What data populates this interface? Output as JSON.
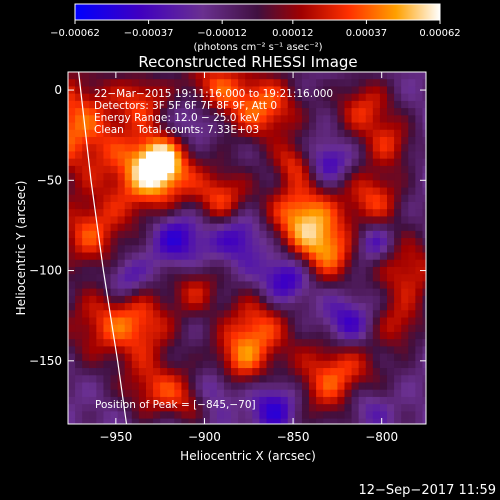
{
  "chart_data": {
    "type": "heatmap",
    "title": "Reconstructed RHESSI Image",
    "xlabel": "Heliocentric X (arcsec)",
    "ylabel": "Heliocentric Y (arcsec)",
    "xlim": [
      -977,
      -775
    ],
    "ylim": [
      -185,
      10
    ],
    "x_ticks": [
      -950,
      -900,
      -850,
      -800
    ],
    "x_tick_labels": [
      "−950",
      "−900",
      "−850",
      "−800"
    ],
    "y_ticks": [
      0,
      -50,
      -100,
      -150
    ],
    "y_tick_labels": [
      "0",
      "−50",
      "−100",
      "−150"
    ],
    "colorbar": {
      "min": -0.00062,
      "max": 0.00062,
      "ticks": [
        -0.00062,
        -0.00037,
        -0.00012,
        0.00012,
        0.00037,
        0.00062
      ],
      "tick_labels": [
        "−0.00062",
        "−0.00037",
        "−0.00012",
        "0.00012",
        "0.00037",
        "0.00062"
      ],
      "unit_label": "(photons cm⁻² s⁻¹ asec⁻²)"
    },
    "annotations": [
      "22−Mar−2015 19:11:16.000 to 19:21:16.000",
      "Detectors: 3F 5F 6F 7F 8F 9F, Att 0",
      "Energy Range: 12.0 − 25.0 keV",
      "Clean    Total counts: 7.33E+03"
    ],
    "peak_label": "Position of Peak = [−845,−70]",
    "peak": [
      -845,
      -70
    ],
    "limb": [
      [
        -971,
        10
      ],
      [
        -964,
        -50
      ],
      [
        -957,
        -100
      ],
      [
        -949,
        -150
      ],
      [
        -944,
        -185
      ]
    ],
    "hotspots": [
      [
        -975,
        -20,
        22,
        0.85
      ],
      [
        -965,
        -80,
        14,
        0.7
      ],
      [
        -960,
        -130,
        16,
        0.55
      ],
      [
        -930,
        -50,
        18,
        0.85
      ],
      [
        -925,
        -40,
        10,
        0.8
      ],
      [
        -935,
        -130,
        14,
        0.65
      ],
      [
        -930,
        -165,
        12,
        0.6
      ],
      [
        -895,
        0,
        14,
        0.75
      ],
      [
        -890,
        -60,
        12,
        0.7
      ],
      [
        -905,
        -110,
        10,
        0.55
      ],
      [
        -870,
        -130,
        14,
        0.7
      ],
      [
        -880,
        -150,
        12,
        0.65
      ],
      [
        -865,
        -10,
        14,
        0.8
      ],
      [
        -845,
        -70,
        14,
        1.0
      ],
      [
        -830,
        -90,
        12,
        0.8
      ],
      [
        -825,
        -160,
        18,
        0.85
      ],
      [
        -810,
        -10,
        12,
        0.65
      ],
      [
        -805,
        -60,
        12,
        0.7
      ],
      [
        -795,
        -30,
        10,
        0.55
      ],
      [
        -785,
        -100,
        14,
        0.65
      ],
      [
        -790,
        -130,
        10,
        0.5
      ],
      [
        -935,
        -5,
        10,
        0.55
      ],
      [
        -850,
        -40,
        8,
        0.55
      ],
      [
        -910,
        -170,
        10,
        0.5
      ]
    ],
    "coldspots": [
      [
        -915,
        -80,
        12,
        -0.6
      ],
      [
        -905,
        -15,
        10,
        -0.5
      ],
      [
        -855,
        -105,
        10,
        -0.6
      ],
      [
        -860,
        -175,
        10,
        -0.55
      ],
      [
        -820,
        -130,
        10,
        -0.55
      ],
      [
        -810,
        -175,
        10,
        -0.5
      ],
      [
        -805,
        -85,
        8,
        -0.5
      ],
      [
        -880,
        -80,
        10,
        -0.5
      ],
      [
        -945,
        -105,
        8,
        -0.45
      ],
      [
        -830,
        -40,
        8,
        -0.45
      ],
      [
        -895,
        -165,
        8,
        -0.45
      ]
    ]
  },
  "footer": {
    "timestamp": "12−Sep−2017 11:59"
  }
}
